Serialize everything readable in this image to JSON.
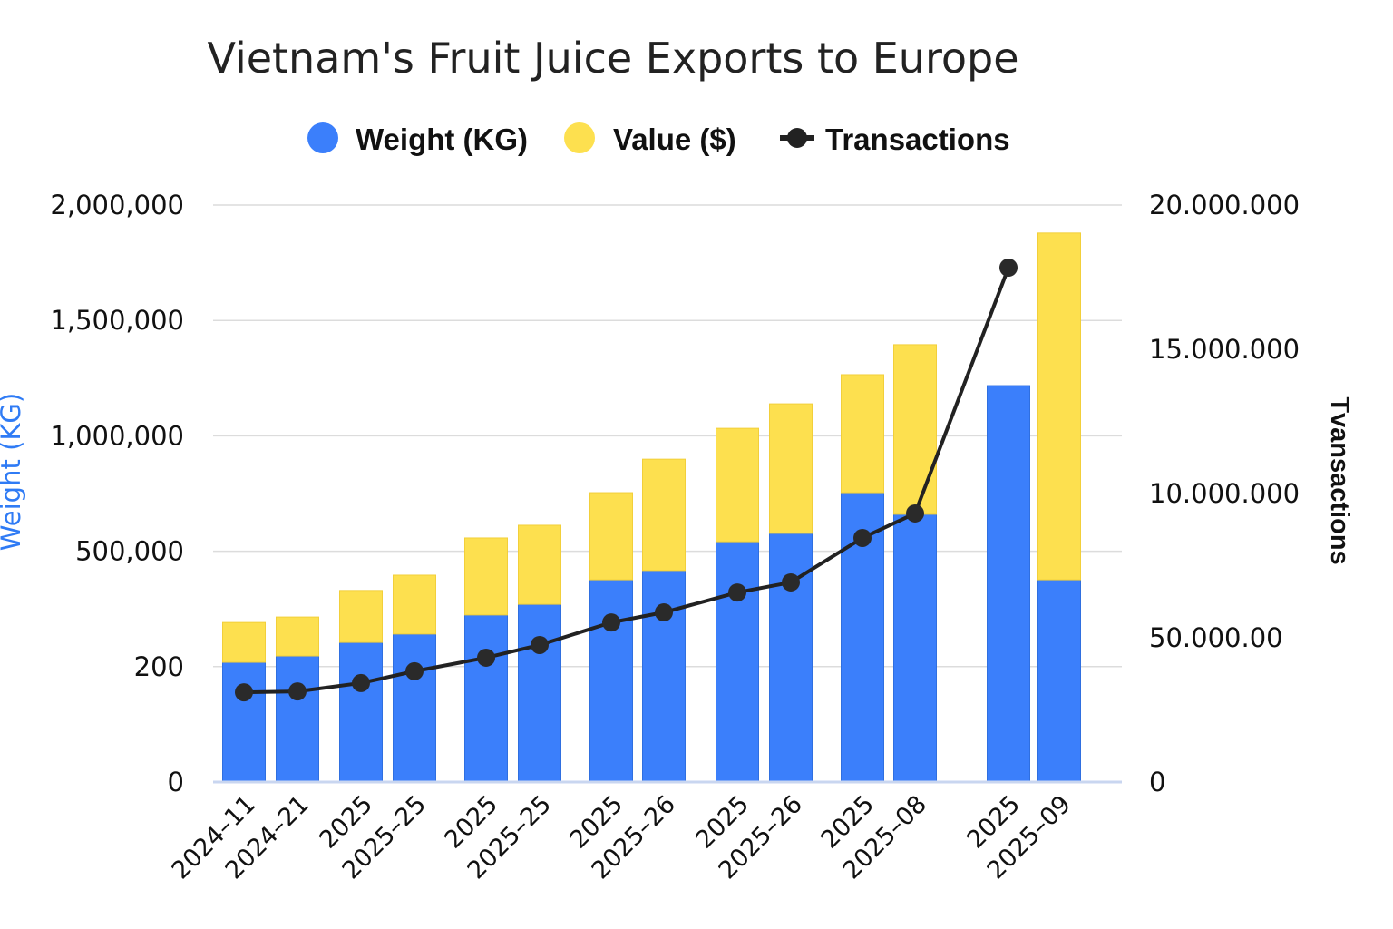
{
  "chart_data": {
    "type": "bar",
    "stacked": true,
    "title": "Vietnam's Fruit Juice Exports to Europe",
    "ylabel": "Weight (KG)",
    "y2label": "Tvansactions",
    "ylim": [
      0,
      2000000
    ],
    "y2lim": [
      0,
      20000000
    ],
    "yticks": [
      "0",
      "200",
      "500,000",
      "1,000,000",
      "1,500,000",
      "2,000,000"
    ],
    "y2ticks": [
      "0",
      "50.000.00",
      "10.000.000",
      "15.000.000",
      "20.000.000"
    ],
    "grid": true,
    "legend_position": "top",
    "categories": [
      "2024–11",
      "2024–21",
      "2025",
      "2025–25",
      "2025",
      "2025–25",
      "2025",
      "2025–26",
      "2025",
      "2025–26",
      "2025",
      "2025–08",
      "2025",
      "2025–09"
    ],
    "series": [
      {
        "name": "Weight (KG)",
        "type": "bar",
        "color": "#3b7ffb",
        "values": [
          415000,
          437000,
          484000,
          513000,
          579000,
          616000,
          701000,
          733000,
          833000,
          862000,
          1003000,
          928000,
          1374000,
          701000
        ]
      },
      {
        "name": "Value ($)",
        "type": "bar",
        "color": "#fde04f",
        "values": [
          138000,
          135000,
          180000,
          204000,
          267000,
          274000,
          302000,
          386000,
          393000,
          449000,
          409000,
          588000,
          0,
          1202000
        ]
      },
      {
        "name": "Transactions",
        "type": "line",
        "axis": "right",
        "color": "#222222",
        "values": [
          3110000,
          3140000,
          3430000,
          3840000,
          4310000,
          4750000,
          5530000,
          5880000,
          6570000,
          6920000,
          8460000,
          9310000,
          17830000,
          null
        ]
      }
    ]
  }
}
